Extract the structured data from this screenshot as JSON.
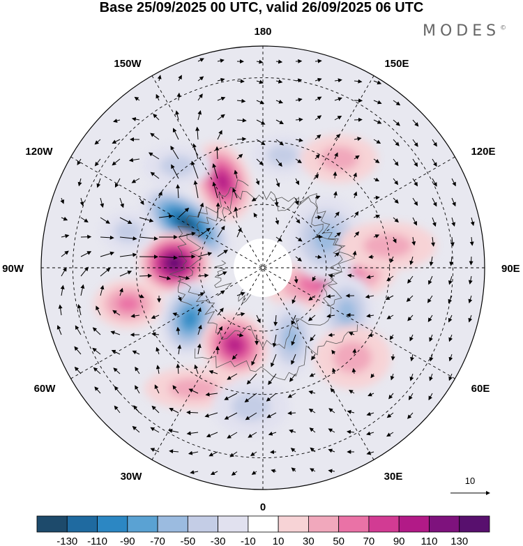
{
  "title": "Base 25/09/2025 00 UTC, valid 26/09/2025 06 UTC",
  "brand": "MODES",
  "brand_mark": "©",
  "longitude_labels": {
    "top": "180",
    "bottom": "0",
    "left": "90W",
    "right": "90E",
    "upper_left": "150W",
    "upper_right": "150E",
    "mid_upper_left": "120W",
    "mid_upper_right": "120E",
    "mid_lower_left": "60W",
    "mid_lower_right": "60E",
    "lower_left": "30W",
    "lower_right": "30E"
  },
  "vector_reference": {
    "label": "10"
  },
  "colorbar": {
    "labels": [
      "-130",
      "-110",
      "-90",
      "-70",
      "-50",
      "-30",
      "-10",
      "10",
      "30",
      "50",
      "70",
      "90",
      "110",
      "130"
    ],
    "colors": [
      "#1d4a6b",
      "#1f6aa0",
      "#2c87c3",
      "#5aa2d3",
      "#9bbbe0",
      "#c4cde6",
      "#e1e1ef",
      "#ffffff",
      "#f7d3d6",
      "#f1a8bc",
      "#ea72a6",
      "#d23b93",
      "#b21a87",
      "#7e127d",
      "#58106e"
    ]
  },
  "anomalies": [
    {
      "lon": -120,
      "colat": 28,
      "value": -135,
      "a": 75,
      "b": 38,
      "rot": 35
    },
    {
      "lon": -93,
      "colat": 28,
      "value": 120,
      "a": 52,
      "b": 45,
      "rot": 0
    },
    {
      "lon": -155,
      "colat": 30,
      "value": 92,
      "a": 58,
      "b": 40,
      "rot": 70
    },
    {
      "lon": -55,
      "colat": 28,
      "value": -95,
      "a": 42,
      "b": 55,
      "rot": 15
    },
    {
      "lon": -20,
      "colat": 26,
      "value": 98,
      "a": 50,
      "b": 45,
      "rot": 30
    },
    {
      "lon": 80,
      "colat": 22,
      "value": 62,
      "a": 95,
      "b": 40,
      "rot": -10
    },
    {
      "lon": 115,
      "colat": 22,
      "value": -42,
      "a": 55,
      "b": 60,
      "rot": 0
    },
    {
      "lon": 62,
      "colat": 30,
      "value": -48,
      "a": 40,
      "b": 55,
      "rot": 0
    },
    {
      "lon": 22,
      "colat": 24,
      "value": -40,
      "a": 35,
      "b": 55,
      "rot": 0
    },
    {
      "lon": 170,
      "colat": 36,
      "value": -35,
      "a": 45,
      "b": 30,
      "rot": 0
    },
    {
      "lon": 145,
      "colat": 42,
      "value": 28,
      "a": 55,
      "b": 35,
      "rot": 0
    },
    {
      "lon": 45,
      "colat": 40,
      "value": 30,
      "a": 55,
      "b": 45,
      "rot": 0
    },
    {
      "lon": -75,
      "colat": 44,
      "value": 40,
      "a": 50,
      "b": 35,
      "rot": 0
    },
    {
      "lon": -30,
      "colat": 44,
      "value": 30,
      "a": 70,
      "b": 30,
      "rot": 0
    },
    {
      "lon": -5,
      "colat": 44,
      "value": -30,
      "a": 55,
      "b": 40,
      "rot": 0
    },
    {
      "lon": -140,
      "colat": 42,
      "value": -32,
      "a": 50,
      "b": 30,
      "rot": 0
    },
    {
      "lon": -105,
      "colat": 44,
      "value": -30,
      "a": 40,
      "b": 30,
      "rot": 0
    },
    {
      "lon": 100,
      "colat": 40,
      "value": 25,
      "a": 70,
      "b": 35,
      "rot": 0
    }
  ]
}
